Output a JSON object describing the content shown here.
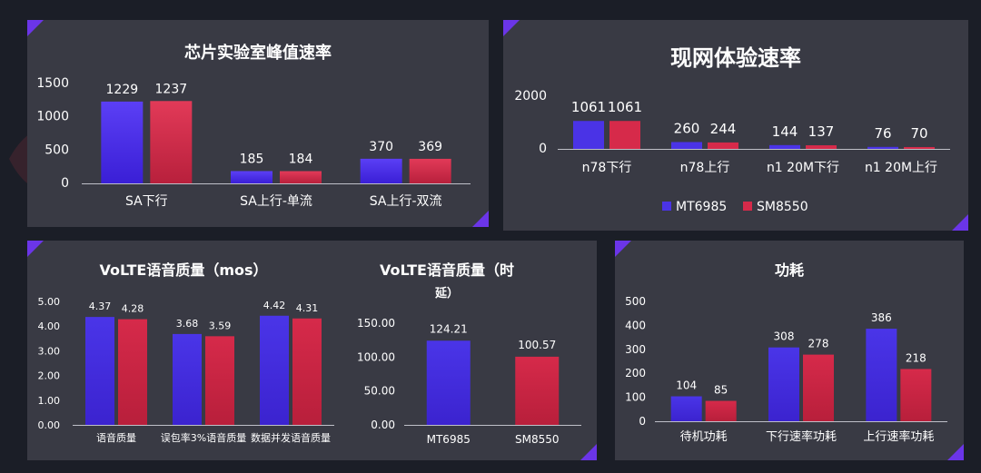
{
  "colors": {
    "mt": "#4a33e6",
    "sm": "#d62a4a",
    "mt_light": "#5b3ff5",
    "sm_light": "#e23a58"
  },
  "legend": {
    "mt": "MT6985",
    "sm": "SM8550"
  },
  "chart_data": [
    {
      "id": "chip",
      "type": "bar",
      "title": "芯片实验室峰值速率",
      "categories": [
        "SA下行",
        "SA上行-单流",
        "SA上行-双流"
      ],
      "series": [
        {
          "name": "MT6985",
          "values": [
            1229,
            185,
            370
          ]
        },
        {
          "name": "SM8550",
          "values": [
            1237,
            184,
            369
          ]
        }
      ],
      "ylim": [
        0,
        1500
      ],
      "yticks": [
        "0",
        "500",
        "1000",
        "1500"
      ],
      "grid": false
    },
    {
      "id": "net",
      "type": "bar",
      "title": "现网体验速率",
      "categories": [
        "n78下行",
        "n78上行",
        "n1 20M下行",
        "n1 20M上行"
      ],
      "series": [
        {
          "name": "MT6985",
          "values": [
            1061,
            260,
            144,
            76
          ]
        },
        {
          "name": "SM8550",
          "values": [
            1061,
            244,
            137,
            70
          ]
        }
      ],
      "ylim": [
        0,
        2000
      ],
      "yticks": [
        "0",
        "2000"
      ],
      "legend_position": "bottom",
      "grid": false
    },
    {
      "id": "mos",
      "type": "bar",
      "title": "VoLTE语音质量（mos）",
      "categories": [
        "语音质量",
        "误包率3%语音质量",
        "数据并发语音质量"
      ],
      "series": [
        {
          "name": "MT6985",
          "values": [
            4.37,
            3.68,
            4.42
          ]
        },
        {
          "name": "SM8550",
          "values": [
            4.28,
            3.59,
            4.31
          ]
        }
      ],
      "ylim": [
        0,
        5
      ],
      "yticks": [
        "0.00",
        "1.00",
        "2.00",
        "3.00",
        "4.00",
        "5.00"
      ],
      "grid": false
    },
    {
      "id": "delay",
      "type": "bar",
      "title": "VoLTE语音质量（时延）",
      "title_lines": [
        "VoLTE语音质量（时",
        "延）"
      ],
      "categories": [
        "MT6985",
        "SM8550"
      ],
      "values": [
        124.21,
        100.57
      ],
      "ylim": [
        0,
        150
      ],
      "yticks": [
        "0.00",
        "50.00",
        "100.00",
        "150.00"
      ],
      "grid": false
    },
    {
      "id": "power",
      "type": "bar",
      "title": "功耗",
      "categories": [
        "待机功耗",
        "下行速率功耗",
        "上行速率功耗"
      ],
      "series": [
        {
          "name": "MT6985",
          "values": [
            104,
            308,
            386
          ]
        },
        {
          "name": "SM8550",
          "values": [
            85,
            278,
            218
          ]
        }
      ],
      "ylim": [
        0,
        500
      ],
      "yticks": [
        "0",
        "100",
        "200",
        "300",
        "400",
        "500"
      ],
      "grid": false
    }
  ]
}
